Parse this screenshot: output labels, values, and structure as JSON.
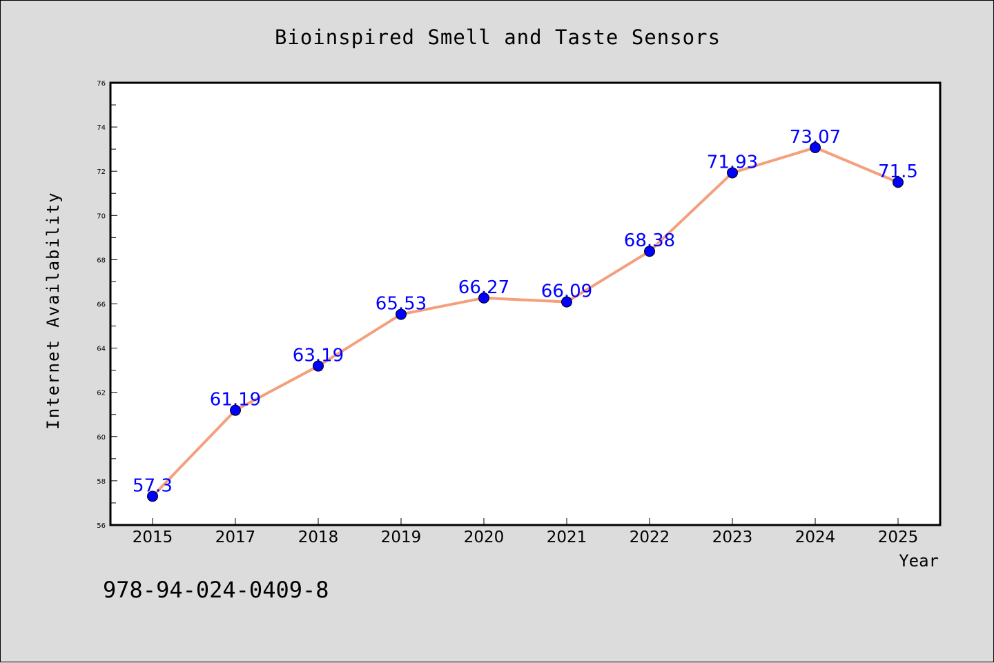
{
  "colors": {
    "background": "#dcdcdc",
    "plot_background": "#ffffff",
    "line": "#f4a07c",
    "marker": "#0000ff",
    "data_label": "#0000ff",
    "text": "#000000"
  },
  "footer_code": "978-94-024-0409-8",
  "chart_data": {
    "type": "line",
    "title": "Bioinspired Smell and Taste Sensors",
    "xlabel": "Year",
    "ylabel": "Internet Availability",
    "categories": [
      "2015",
      "2017",
      "2018",
      "2019",
      "2020",
      "2021",
      "2022",
      "2023",
      "2024",
      "2025"
    ],
    "series": [
      {
        "values": [
          57.3,
          61.19,
          63.19,
          65.53,
          66.27,
          66.09,
          68.38,
          71.93,
          73.07,
          71.5
        ],
        "labels": [
          "57.3",
          "61.19",
          "63.19",
          "65.53",
          "66.27",
          "66.09",
          "68.38",
          "71.93",
          "73.07",
          "71.5"
        ]
      }
    ],
    "ylim": [
      56,
      76
    ],
    "yticks": [
      56,
      58,
      60,
      62,
      64,
      66,
      68,
      70,
      72,
      74,
      76
    ],
    "grid": false,
    "legend": "none"
  }
}
